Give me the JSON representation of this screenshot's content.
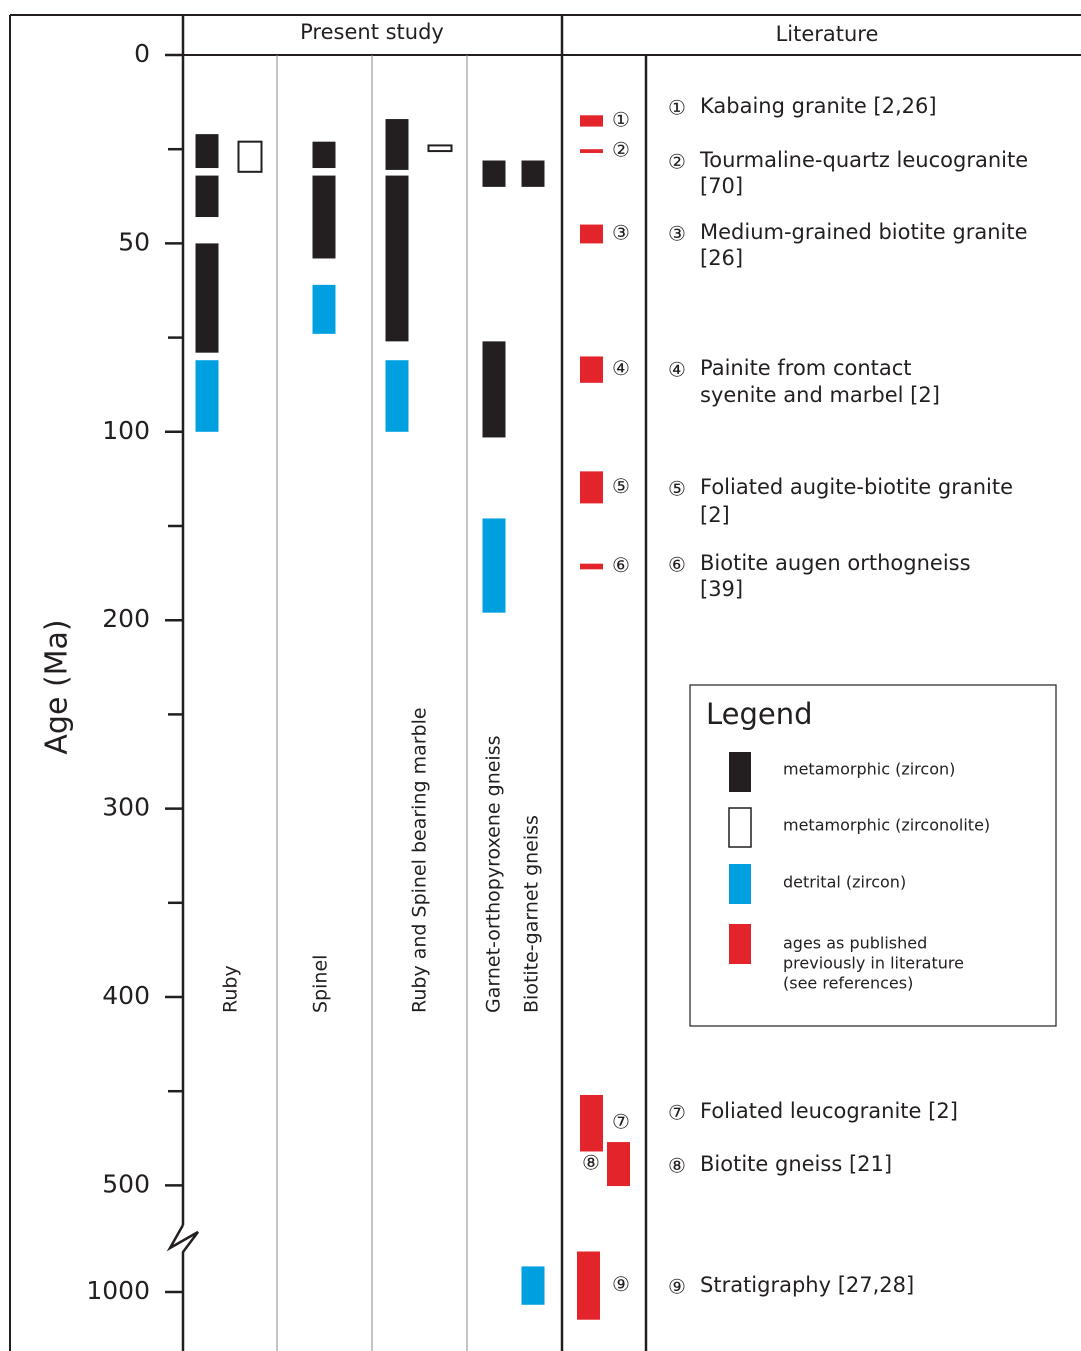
{
  "chart_data": {
    "type": "range_bar",
    "y_label": "Age (Ma)",
    "yticks": [
      0,
      50,
      100,
      200,
      300,
      400,
      500,
      1000
    ],
    "minor_yticks": [
      25,
      75,
      150,
      250,
      350,
      450
    ],
    "ylim": [
      0,
      1000
    ],
    "axis_break": true,
    "groups": [
      "Present study",
      "Literature"
    ],
    "columns": [
      {
        "name": "Ruby",
        "ranges": {
          "metamorphic_zircon": [
            [
              21,
              30
            ],
            [
              32,
              43
            ],
            [
              50,
              79
            ]
          ],
          "metamorphic_zirconolite": [
            [
              23,
              31
            ]
          ],
          "detrital_zircon": [
            [
              81,
              100
            ]
          ]
        }
      },
      {
        "name": "Spinel",
        "ranges": {
          "metamorphic_zircon": [
            [
              23,
              30
            ],
            [
              32,
              54
            ]
          ],
          "detrital_zircon": [
            [
              61,
              74
            ]
          ]
        }
      },
      {
        "name": "Ruby and Spinel bearing marble",
        "ranges": {
          "metamorphic_zircon": [
            [
              17,
              30.5
            ],
            [
              32,
              76
            ]
          ],
          "metamorphic_zirconolite": [
            [
              24,
              25.5
            ]
          ],
          "detrital_zircon": [
            [
              81,
              100
            ]
          ]
        }
      },
      {
        "name": "Garnet-orthopyroxene gneiss",
        "ranges": {
          "metamorphic_zircon": [
            [
              28,
              35
            ],
            [
              76,
              103
            ]
          ],
          "detrital_zircon": [
            [
              146,
              196
            ]
          ]
        }
      },
      {
        "name": "Biotite-garnet gneiss",
        "ranges": {
          "metamorphic_zircon": [
            [
              28,
              35
            ]
          ],
          "detrital_zircon": [
            [
              880,
              1060
            ]
          ]
        }
      }
    ],
    "literature": [
      {
        "marker": "①",
        "lines": [
          "Kabaing granite [2,26]"
        ],
        "range": [
          16,
          19
        ]
      },
      {
        "marker": "②",
        "lines": [
          "Tourmaline-quartz leucogranite",
          "[70]"
        ],
        "range": [
          25,
          26
        ]
      },
      {
        "marker": "③",
        "lines": [
          "Medium-grained biotite granite",
          "[26]"
        ],
        "range": [
          45,
          50
        ]
      },
      {
        "marker": "④",
        "lines": [
          "Painite from contact",
          "syenite and marbel [2]"
        ],
        "range": [
          80,
          87
        ]
      },
      {
        "marker": "⑤",
        "lines": [
          "Foliated augite-biotite granite",
          "[2]"
        ],
        "range": [
          121,
          138
        ]
      },
      {
        "marker": "⑥",
        "lines": [
          "Biotite augen orthogneiss",
          "[39]"
        ],
        "range": [
          170,
          173
        ]
      },
      {
        "marker": "⑦",
        "lines": [
          "Foliated leucogranite [2]"
        ],
        "range": [
          452,
          482
        ]
      },
      {
        "marker": "⑧",
        "lines": [
          "Biotite gneiss [21]"
        ],
        "range": [
          477,
          503
        ]
      },
      {
        "marker": "⑨",
        "lines": [
          "Stratigraphy [27,28]"
        ],
        "range": [
          810,
          1130
        ]
      }
    ],
    "legend_title": "Legend",
    "legend": [
      {
        "key": "metamorphic_zircon",
        "lines": [
          "metamorphic (zircon)"
        ],
        "color": "#231f20",
        "filled": true
      },
      {
        "key": "metamorphic_zirconolite",
        "lines": [
          "metamorphic (zirconolite)"
        ],
        "color": "#231f20",
        "filled": false
      },
      {
        "key": "detrital_zircon",
        "lines": [
          "detrital (zircon)"
        ],
        "color": "#00a0e0",
        "filled": true
      },
      {
        "key": "literature",
        "lines": [
          "ages as published",
          "previously in literature",
          "(see references)"
        ],
        "color": "#e3242b",
        "filled": true
      }
    ]
  }
}
